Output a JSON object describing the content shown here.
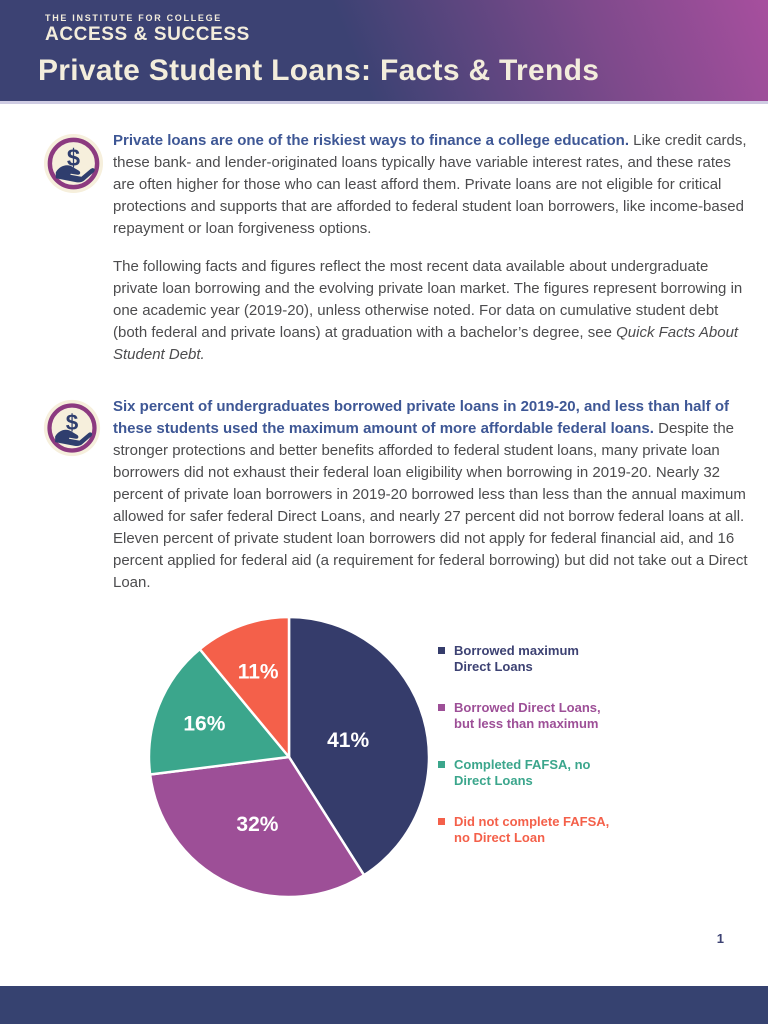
{
  "header": {
    "org_line1": "THE INSTITUTE FOR COLLEGE",
    "org_line2": "ACCESS & SUCCESS",
    "title": "Private Student Loans: Facts & Trends"
  },
  "colors": {
    "header_gradient_start": "#3C4273",
    "header_gradient_end": "#A74F9E",
    "heading_blue": "#3E5795",
    "body_text": "#4C4C4E",
    "cream": "#F3EDDC",
    "icon_ring": "#8C3A80",
    "icon_glyph": "#2F3E6E",
    "footer_navy": "#364270"
  },
  "sections": [
    {
      "icon": "hand-holding-dollar",
      "lead_bold": "Private loans are one of the riskiest ways to finance a college education.",
      "body": " Like credit cards, these bank- and lender-originated loans typically have variable interest rates, and these rates are often higher for those who can least afford them. Private loans are not eligible for critical protections and supports that are afforded to federal student loan borrowers, like income-based repayment or loan forgiveness options.",
      "paragraph2": "The following facts and figures reflect the most recent data available about undergraduate private loan borrowing and the evolving private loan market. The figures represent borrowing in one academic year (2019-20), unless otherwise noted. For data on cumulative student debt (both federal and private loans) at graduation with a bachelor’s degree, see ",
      "paragraph2_italic": "Quick Facts About Student Debt."
    },
    {
      "icon": "hand-holding-dollar",
      "lead_bold": "Six percent of undergraduates borrowed private loans in 2019-20, and less than half of these students used the maximum amount of more affordable federal loans.",
      "body": " Despite the stronger protections and better benefits afforded to federal student loans, many private loan borrowers did not exhaust their federal loan eligibility when borrowing in 2019-20. Nearly 32 percent of private loan borrowers in 2019-20 borrowed less than less than the annual maximum allowed for safer federal Direct Loans, and nearly 27 percent did not borrow federal loans at all. Eleven percent of private student loan borrowers did not apply for federal financial aid, and 16 percent applied for federal aid (a requirement for federal borrowing) but did not take out a Direct Loan."
    }
  ],
  "chart_data": {
    "type": "pie",
    "title": "",
    "start_angle": "top, clockwise",
    "legend_position": "right",
    "data_labels": "percent inside slices",
    "slices": [
      {
        "label": "Borrowed maximum Direct Loans",
        "legend_lines": [
          "Borrowed maximum",
          "Direct Loans"
        ],
        "value": 41,
        "pct_label": "41%",
        "color": "#353C6B"
      },
      {
        "label": "Borrowed Direct Loans, but less than maximum",
        "legend_lines": [
          "Borrowed Direct Loans,",
          "but less than maximum"
        ],
        "value": 32,
        "pct_label": "32%",
        "color": "#9D4F97"
      },
      {
        "label": "Completed FAFSA, no Direct Loans",
        "legend_lines": [
          "Completed FAFSA, no",
          "Direct Loans"
        ],
        "value": 16,
        "pct_label": "16%",
        "color": "#3BA68C"
      },
      {
        "label": "Did not complete FAFSA, no Direct Loan",
        "legend_lines": [
          "Did not complete FAFSA,",
          "no Direct Loan"
        ],
        "value": 11,
        "pct_label": "11%",
        "color": "#F4604A"
      }
    ]
  },
  "page_number": "1"
}
